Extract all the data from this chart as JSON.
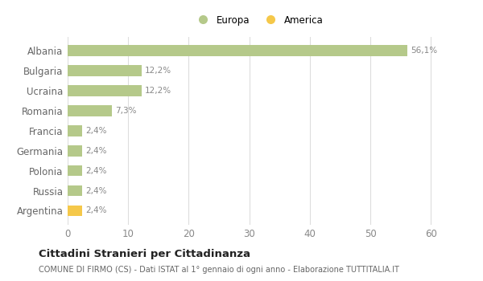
{
  "categories": [
    "Albania",
    "Bulgaria",
    "Ucraina",
    "Romania",
    "Francia",
    "Germania",
    "Polonia",
    "Russia",
    "Argentina"
  ],
  "values": [
    56.1,
    12.2,
    12.2,
    7.3,
    2.4,
    2.4,
    2.4,
    2.4,
    2.4
  ],
  "labels": [
    "56,1%",
    "12,2%",
    "12,2%",
    "7,3%",
    "2,4%",
    "2,4%",
    "2,4%",
    "2,4%",
    "2,4%"
  ],
  "colors": [
    "#b5c98a",
    "#b5c98a",
    "#b5c98a",
    "#b5c98a",
    "#b5c98a",
    "#b5c98a",
    "#b5c98a",
    "#b5c98a",
    "#f5c84a"
  ],
  "europa_color": "#b5c98a",
  "america_color": "#f5c84a",
  "xlim": [
    0,
    63
  ],
  "xticks": [
    0,
    10,
    20,
    30,
    40,
    50,
    60
  ],
  "title": "Cittadini Stranieri per Cittadinanza",
  "subtitle": "COMUNE DI FIRMO (CS) - Dati ISTAT al 1° gennaio di ogni anno - Elaborazione TUTTITALIA.IT",
  "background_color": "#ffffff",
  "grid_color": "#dddddd",
  "bar_height": 0.55,
  "label_color": "#888888",
  "legend_europa": "Europa",
  "legend_america": "America"
}
